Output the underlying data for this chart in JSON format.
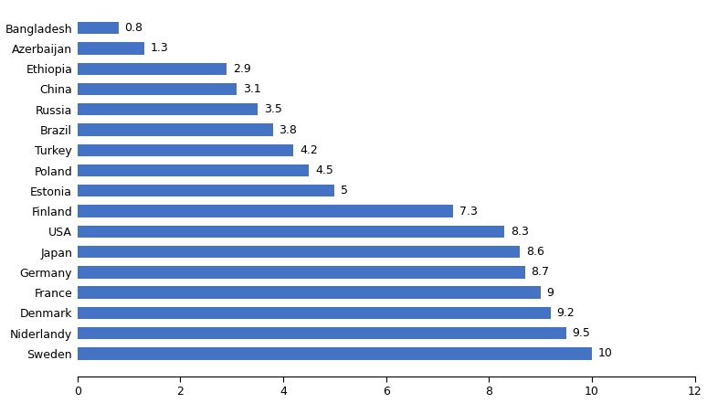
{
  "countries": [
    "Bangladesh",
    "Azerbaijan",
    "Ethiopia",
    "China",
    "Russia",
    "Brazil",
    "Turkey",
    "Poland",
    "Estonia",
    "Finland",
    "USA",
    "Japan",
    "Germany",
    "France",
    "Denmark",
    "Niderlandy",
    "Sweden"
  ],
  "values": [
    0.8,
    1.3,
    2.9,
    3.1,
    3.5,
    3.8,
    4.2,
    4.5,
    5.0,
    7.3,
    8.3,
    8.6,
    8.7,
    9.0,
    9.2,
    9.5,
    10.0
  ],
  "value_labels": [
    "0.8",
    "1.3",
    "2.9",
    "3.1",
    "3.5",
    "3.8",
    "4.2",
    "4.5",
    "5",
    "7.3",
    "8.3",
    "8.6",
    "8.7",
    "9",
    "9.2",
    "9.5",
    "10"
  ],
  "bar_color": "#4472C4",
  "xlim": [
    0,
    12
  ],
  "xticks": [
    0,
    2,
    4,
    6,
    8,
    10,
    12
  ],
  "bar_height": 0.6,
  "value_fontsize": 9,
  "label_fontsize": 9,
  "tick_fontsize": 9,
  "figsize": [
    7.74,
    4.41
  ],
  "dpi": 100
}
